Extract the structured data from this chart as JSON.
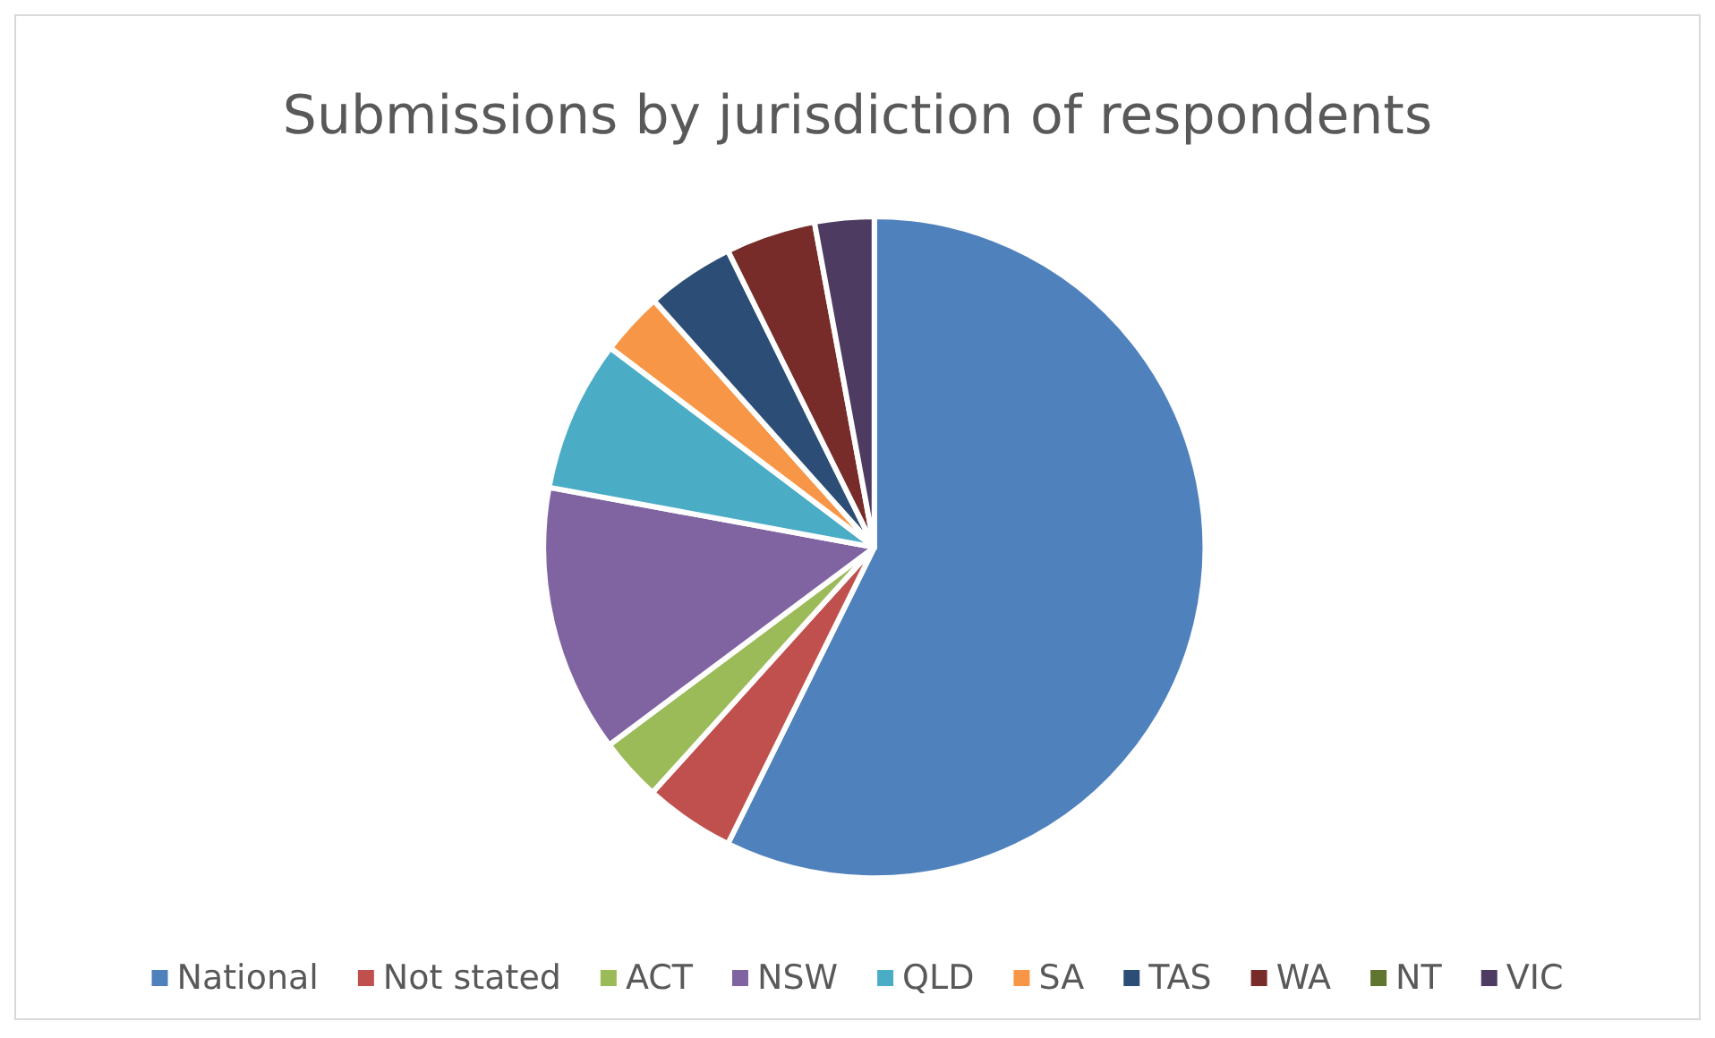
{
  "chart_data": {
    "type": "pie",
    "title": "Submissions by jurisdiction of respondents",
    "categories": [
      "National",
      "Not stated",
      "ACT",
      "NSW",
      "QLD",
      "SA",
      "TAS",
      "WA",
      "NT",
      "VIC"
    ],
    "values": [
      57.3,
      4.4,
      3.1,
      13.1,
      7.4,
      3.1,
      4.3,
      4.4,
      0,
      2.9
    ],
    "colors": [
      "#4f81bd",
      "#c0504d",
      "#9bbb59",
      "#8064a2",
      "#4bacc6",
      "#f79646",
      "#2c4d75",
      "#772c2a",
      "#5f7530",
      "#4d3b62"
    ],
    "legend": "bottom"
  }
}
